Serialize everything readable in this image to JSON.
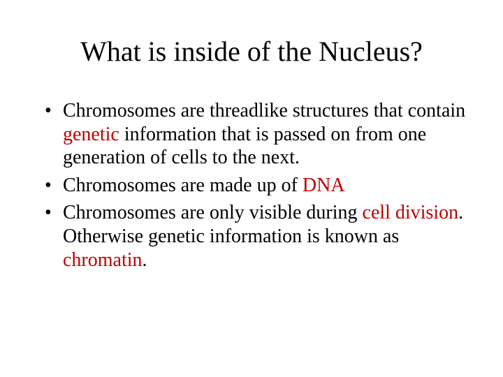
{
  "title": "What is inside of the Nucleus?",
  "colors": {
    "text": "#000000",
    "highlight": "#c00000",
    "background": "#ffffff"
  },
  "typography": {
    "family": "Times New Roman",
    "title_fontsize": 40,
    "body_fontsize": 28
  },
  "bullets": [
    {
      "runs": [
        {
          "t": "Chromosomes are threadlike structures that contain "
        },
        {
          "t": "genetic",
          "red": true
        },
        {
          "t": " information that is passed on from one generation of cells to the next."
        }
      ]
    },
    {
      "runs": [
        {
          "t": "Chromosomes are made up of "
        },
        {
          "t": "DNA",
          "red": true
        }
      ]
    },
    {
      "runs": [
        {
          "t": "Chromosomes are only visible during "
        },
        {
          "t": "cell division",
          "red": true
        },
        {
          "t": ". Otherwise genetic information is known as "
        },
        {
          "t": "chromatin",
          "red": true
        },
        {
          "t": "."
        }
      ]
    }
  ]
}
